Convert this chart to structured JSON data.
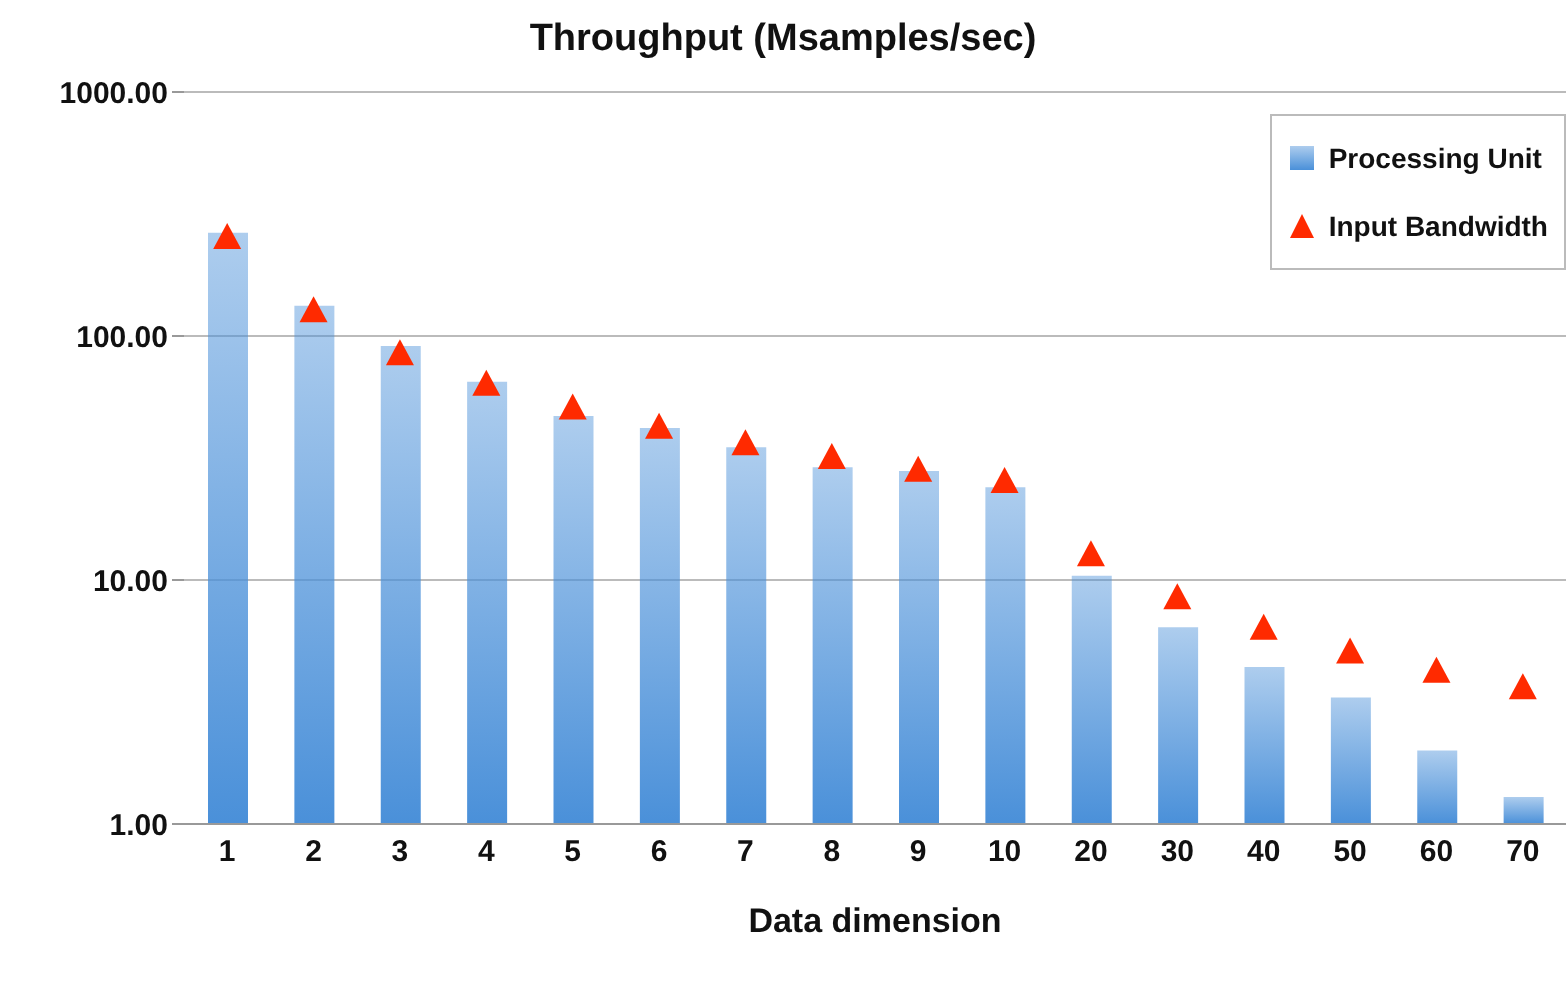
{
  "chart_data": {
    "type": "bar",
    "title": "Throughput (Msamples/sec)",
    "xlabel": "Data dimension",
    "categories": [
      "1",
      "2",
      "3",
      "4",
      "5",
      "6",
      "7",
      "8",
      "9",
      "10",
      "20",
      "30",
      "40",
      "50",
      "60",
      "70"
    ],
    "series": [
      {
        "name": "Processing Unit",
        "color": "#4a90d9",
        "values": [
          265,
          133,
          91,
          65,
          47,
          42,
          35,
          29,
          28,
          24,
          10.4,
          6.4,
          4.4,
          3.3,
          2.0,
          1.29
        ]
      },
      {
        "name": "Input Bandwidth",
        "type": "scatter",
        "color": "#ff2a00",
        "values": [
          250,
          125,
          83.3,
          62.5,
          50,
          41.7,
          35.7,
          31.3,
          27.8,
          25,
          12.5,
          8.33,
          6.25,
          5,
          4.17,
          3.57
        ]
      }
    ],
    "log": "y",
    "ylim": [
      1,
      1000
    ],
    "yticks": [
      {
        "value": 1,
        "label": "1.00"
      },
      {
        "value": 10,
        "label": "10.00"
      },
      {
        "value": 100,
        "label": "100.00"
      },
      {
        "value": 1000,
        "label": "1000.00"
      }
    ],
    "grid": "y",
    "legend": "top right",
    "marker": "triangle"
  }
}
